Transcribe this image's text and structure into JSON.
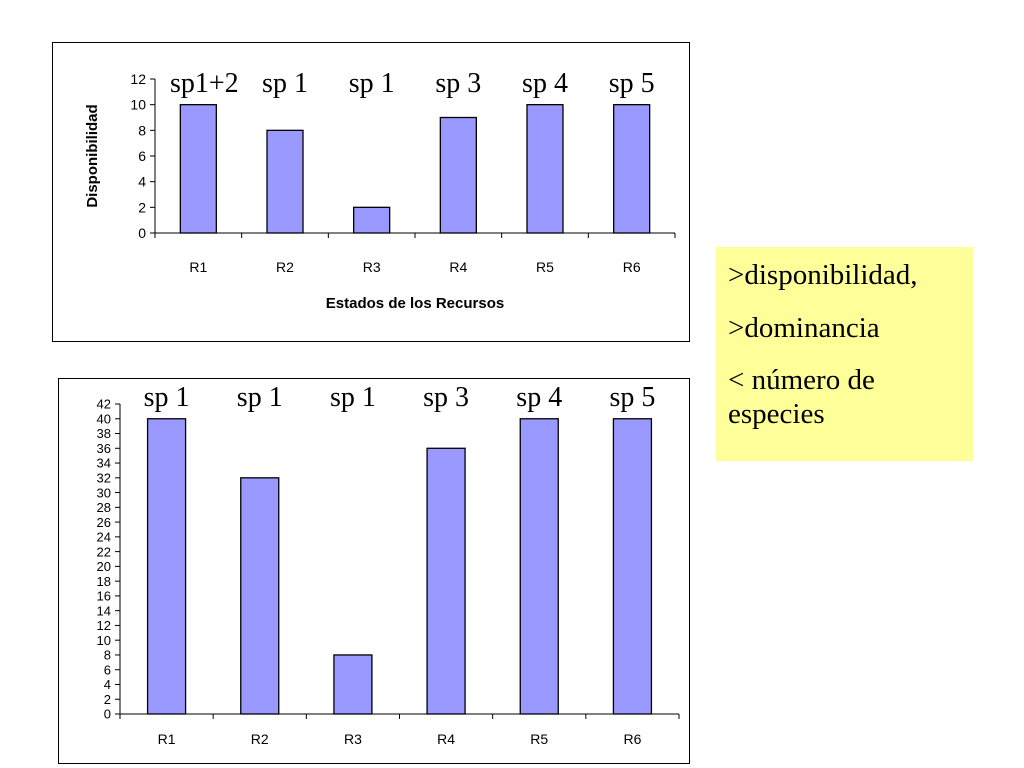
{
  "chart_data": [
    {
      "type": "bar",
      "categories": [
        "R1",
        "R2",
        "R3",
        "R4",
        "R5",
        "R6"
      ],
      "values": [
        10,
        8,
        2,
        9,
        10,
        10
      ],
      "bar_labels": [
        "sp1+2",
        "sp 1",
        "sp 1",
        "sp 3",
        "sp 4",
        "sp 5"
      ],
      "xlabel": "Estados de los Recursos",
      "ylabel": "Disponibilidad",
      "ylim": [
        0,
        12
      ],
      "ytick_step": 2,
      "bar_color": "#9999ff",
      "grid": false,
      "legend": "none"
    },
    {
      "type": "bar",
      "categories": [
        "R1",
        "R2",
        "R3",
        "R4",
        "R5",
        "R6"
      ],
      "values": [
        40,
        32,
        8,
        36,
        40,
        40
      ],
      "bar_labels": [
        "sp 1",
        "sp 1",
        "sp 1",
        "sp 3",
        "sp 4",
        "sp 5"
      ],
      "xlabel": "",
      "ylabel": "",
      "ylim": [
        0,
        42
      ],
      "ytick_step": 2,
      "bar_color": "#9999ff",
      "grid": false,
      "legend": "none"
    }
  ],
  "notes": {
    "background": "#ffff99",
    "line1": ">disponibilidad,",
    "line2": ">dominancia",
    "line3": "< número de especies"
  }
}
